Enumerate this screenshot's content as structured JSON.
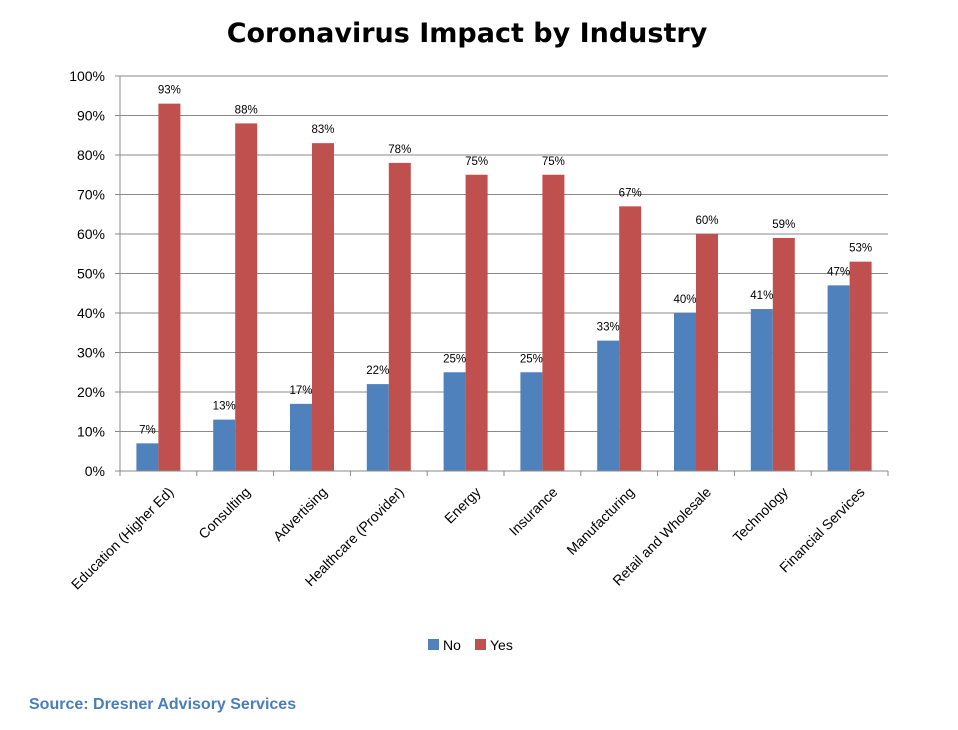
{
  "chart_data": {
    "type": "bar",
    "title": "Coronavirus Impact by Industry",
    "categories": [
      "Education (Higher Ed)",
      "Consulting",
      "Advertising",
      "Healthcare (Provider)",
      "Energy",
      "Insurance",
      "Manufacturing",
      "Retail and Wholesale",
      "Technology",
      "Financial Services"
    ],
    "series": [
      {
        "name": "No",
        "color": "#4f81bd",
        "values": [
          7,
          13,
          17,
          22,
          25,
          25,
          33,
          40,
          41,
          47
        ],
        "labels": [
          "7%",
          "13%",
          "17%",
          "22%",
          "25%",
          "25%",
          "33%",
          "40%",
          "41%",
          "47%"
        ]
      },
      {
        "name": "Yes",
        "color": "#c0504d",
        "values": [
          93,
          88,
          83,
          78,
          75,
          75,
          67,
          60,
          59,
          53
        ],
        "labels": [
          "93%",
          "88%",
          "83%",
          "78%",
          "75%",
          "75%",
          "67%",
          "60%",
          "59%",
          "53%"
        ]
      }
    ],
    "ylim": [
      0,
      100
    ],
    "yticks": [
      "0%",
      "10%",
      "20%",
      "30%",
      "40%",
      "50%",
      "60%",
      "70%",
      "80%",
      "90%",
      "100%"
    ],
    "xlabel": "",
    "ylabel": "",
    "grid": true,
    "legend": "bottom"
  },
  "source": "Source: Dresner Advisory Services"
}
